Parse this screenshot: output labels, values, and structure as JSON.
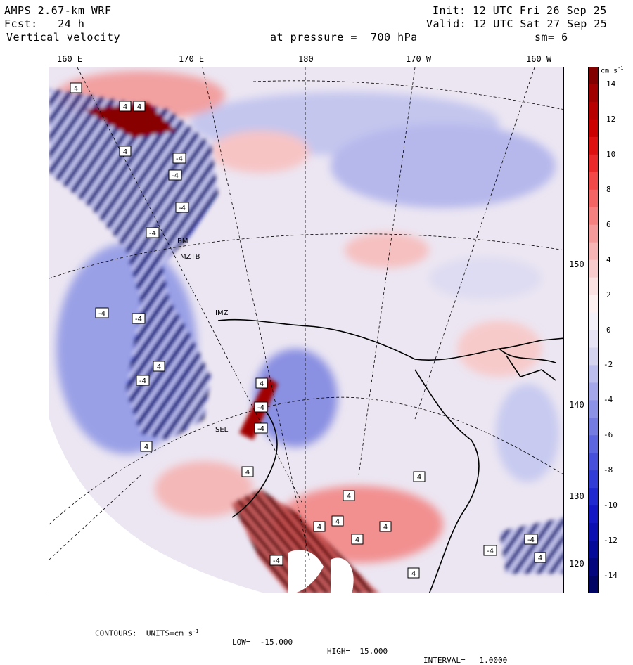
{
  "header": {
    "model": "AMPS 2.67-km WRF",
    "forecast": "Fcst:   24 h",
    "field": "Vertical velocity",
    "init": "Init: 12 UTC Fri 26 Sep 25",
    "valid": "Valid: 12 UTC Sat 27 Sep 25",
    "level": "at pressure =  700 hPa",
    "smoothing": "sm= 6"
  },
  "map": {
    "longitude_labels": [
      "160 E",
      "170 E",
      "180",
      "170 W",
      "160 W"
    ],
    "latitude_labels": [
      "150 W",
      "140 W",
      "130 W",
      "120 W"
    ],
    "colors": {
      "ocean_bg": "#ece6f2",
      "land_mask": "#ffffff",
      "positive": "#c80000",
      "negative": "#1020c8"
    }
  },
  "chart_data": {
    "type": "heatmap",
    "title": "Vertical velocity at pressure = 700 hPa",
    "units": "cm s-1",
    "colorbar": {
      "label": "cm s",
      "label_exp": "-1",
      "ticks": [
        14,
        12,
        10,
        8,
        6,
        4,
        2,
        0,
        -2,
        -4,
        -6,
        -8,
        -10,
        -12,
        -14
      ],
      "range": [
        -15,
        15
      ],
      "interval": 1,
      "colors": [
        "#820000",
        "#a00000",
        "#b80000",
        "#cc0000",
        "#de1010",
        "#ea2a2a",
        "#f24848",
        "#f46464",
        "#f48080",
        "#f59a9a",
        "#f6b4b4",
        "#f8cccc",
        "#fae2e2",
        "#fcf0f0",
        "#f4f0f8",
        "#e6e4f4",
        "#d4d4f0",
        "#bcbeee",
        "#a4a8ea",
        "#8c92e6",
        "#747ce2",
        "#5c66de",
        "#4650da",
        "#323cd6",
        "#2028d0",
        "#1418c4",
        "#0c10b0",
        "#060a98",
        "#04067e",
        "#020464"
      ]
    },
    "contours": {
      "units_label": "CONTOURS:  UNITS=cm s",
      "units_exp": "-1",
      "low": -15.0,
      "high": 15.0,
      "interval": 1.0
    },
    "low_labels_shown": "-4",
    "high_labels_shown": "4"
  },
  "footer": {
    "contours": "CONTOURS:  UNITS=cm s",
    "units_exp": "-1",
    "low": "LOW=  -15.000",
    "high": "HIGH=  15.000",
    "interval": "INTERVAL=   1.0000"
  },
  "station_labels": [
    "MZTB",
    "IMZ",
    "SEL",
    "BM",
    "4",
    "-4"
  ]
}
